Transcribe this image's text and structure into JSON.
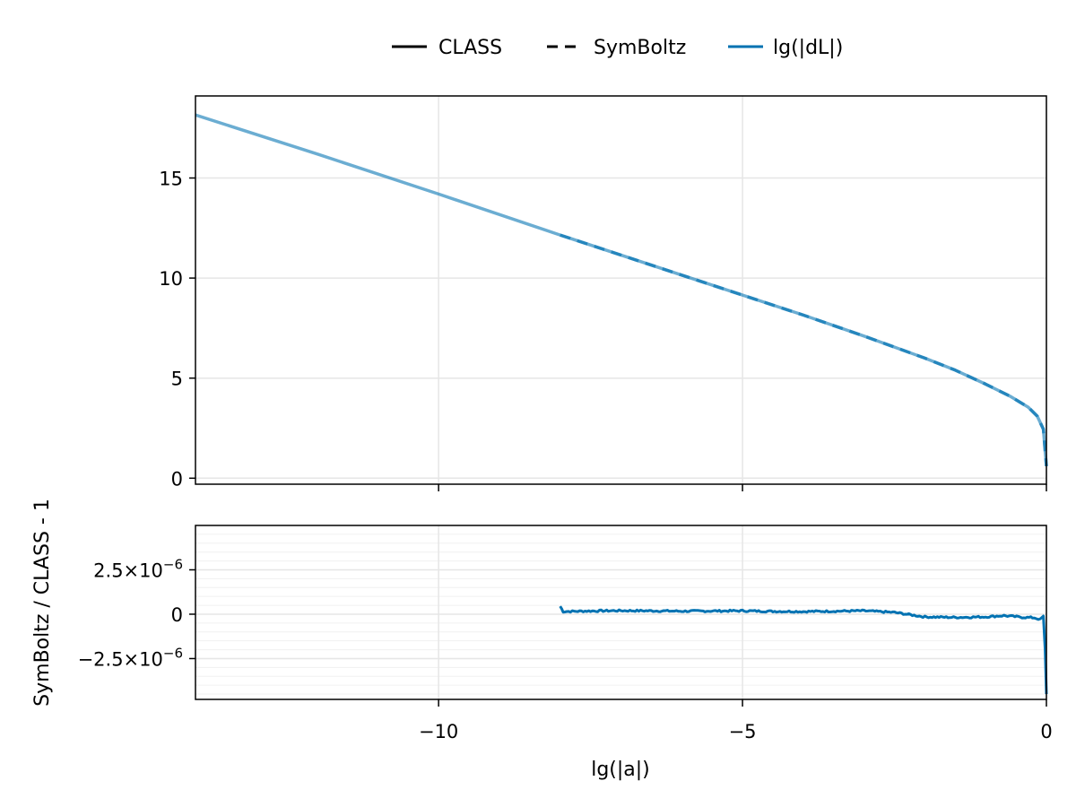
{
  "colors": {
    "series": "#0072b2",
    "reference": "#000000",
    "grid": "#e6e6e6",
    "minor_grid": "#f0f0f0"
  },
  "legend": {
    "placement": "top-center",
    "entries": [
      {
        "label": "CLASS",
        "style": "solid",
        "color": "#000000"
      },
      {
        "label": "SymBoltz",
        "style": "dashed",
        "color": "#000000"
      },
      {
        "label": "lg(|dL|)",
        "style": "solid",
        "color": "#0072b2"
      }
    ]
  },
  "chart_data": [
    {
      "type": "line",
      "panel": "top",
      "xlabel": "",
      "ylabel": "",
      "xlim": [
        -14,
        0
      ],
      "ylim": [
        -0.3,
        19.1
      ],
      "x_ticks": [
        -10,
        -5,
        0
      ],
      "y_ticks": [
        0,
        5,
        10,
        15
      ],
      "y_tick_labels": [
        "0",
        "5",
        "10",
        "15"
      ],
      "grid": true,
      "series": [
        {
          "name": "CLASS",
          "style": "solid",
          "color": "#0072b2",
          "x": [
            -14.0,
            -12.0,
            -10.0,
            -8.0,
            -6.0,
            -4.0,
            -3.0,
            -2.0,
            -1.5,
            -1.0,
            -0.6,
            -0.3,
            -0.15,
            -0.05,
            0.0
          ],
          "y": [
            18.15,
            16.2,
            14.2,
            12.15,
            10.15,
            8.15,
            7.1,
            6.0,
            5.4,
            4.7,
            4.1,
            3.55,
            3.1,
            2.45,
            0.6
          ]
        },
        {
          "name": "SymBoltz",
          "style": "dashed",
          "color": "#0072b2",
          "x": [
            -8.0,
            -6.0,
            -4.0,
            -3.0,
            -2.0,
            -1.5,
            -1.0,
            -0.6,
            -0.3,
            -0.15,
            -0.05,
            0.0
          ],
          "y": [
            12.15,
            10.15,
            8.15,
            7.1,
            6.0,
            5.4,
            4.7,
            4.1,
            3.55,
            3.1,
            2.45,
            0.6
          ]
        }
      ]
    },
    {
      "type": "line",
      "panel": "bottom",
      "xlabel": "lg(|a|)",
      "ylabel": "SymBoltz / CLASS - 1",
      "xlim": [
        -14,
        0
      ],
      "ylim": [
        -4.8e-06,
        5e-06
      ],
      "x_ticks": [
        -10,
        -5,
        0
      ],
      "x_tick_labels": [
        "−10",
        "−5",
        "0"
      ],
      "y_ticks": [
        -2.5e-06,
        0,
        2.5e-06
      ],
      "y_tick_labels": [
        {
          "mantissa": "−2.5×10",
          "exponent": "−6"
        },
        {
          "mantissa": "0",
          "exponent": ""
        },
        {
          "mantissa": "2.5×10",
          "exponent": "−6"
        }
      ],
      "grid": true,
      "series": [
        {
          "name": "lg(|dL|)",
          "style": "solid",
          "color": "#0072b2",
          "x": [
            -8.0,
            -7.95,
            -7.5,
            -7.0,
            -6.5,
            -6.0,
            -5.5,
            -5.0,
            -4.5,
            -4.0,
            -3.5,
            -3.0,
            -2.5,
            -2.0,
            -1.5,
            -1.0,
            -0.7,
            -0.4,
            -0.2,
            -0.1,
            -0.05,
            -0.02,
            0.0
          ],
          "y": [
            4.5e-07,
            1.5e-07,
            1.8e-07,
            2e-07,
            1.9e-07,
            1.7e-07,
            1.8e-07,
            1.9e-07,
            1.6e-07,
            1.5e-07,
            1.7e-07,
            1.9e-07,
            1e-07,
            -1.5e-07,
            -1.8e-07,
            -1.5e-07,
            -8e-08,
            -1.7e-07,
            -2e-07,
            -3e-07,
            -1e-07,
            -2e-06,
            -4.5e-06
          ]
        }
      ]
    }
  ]
}
